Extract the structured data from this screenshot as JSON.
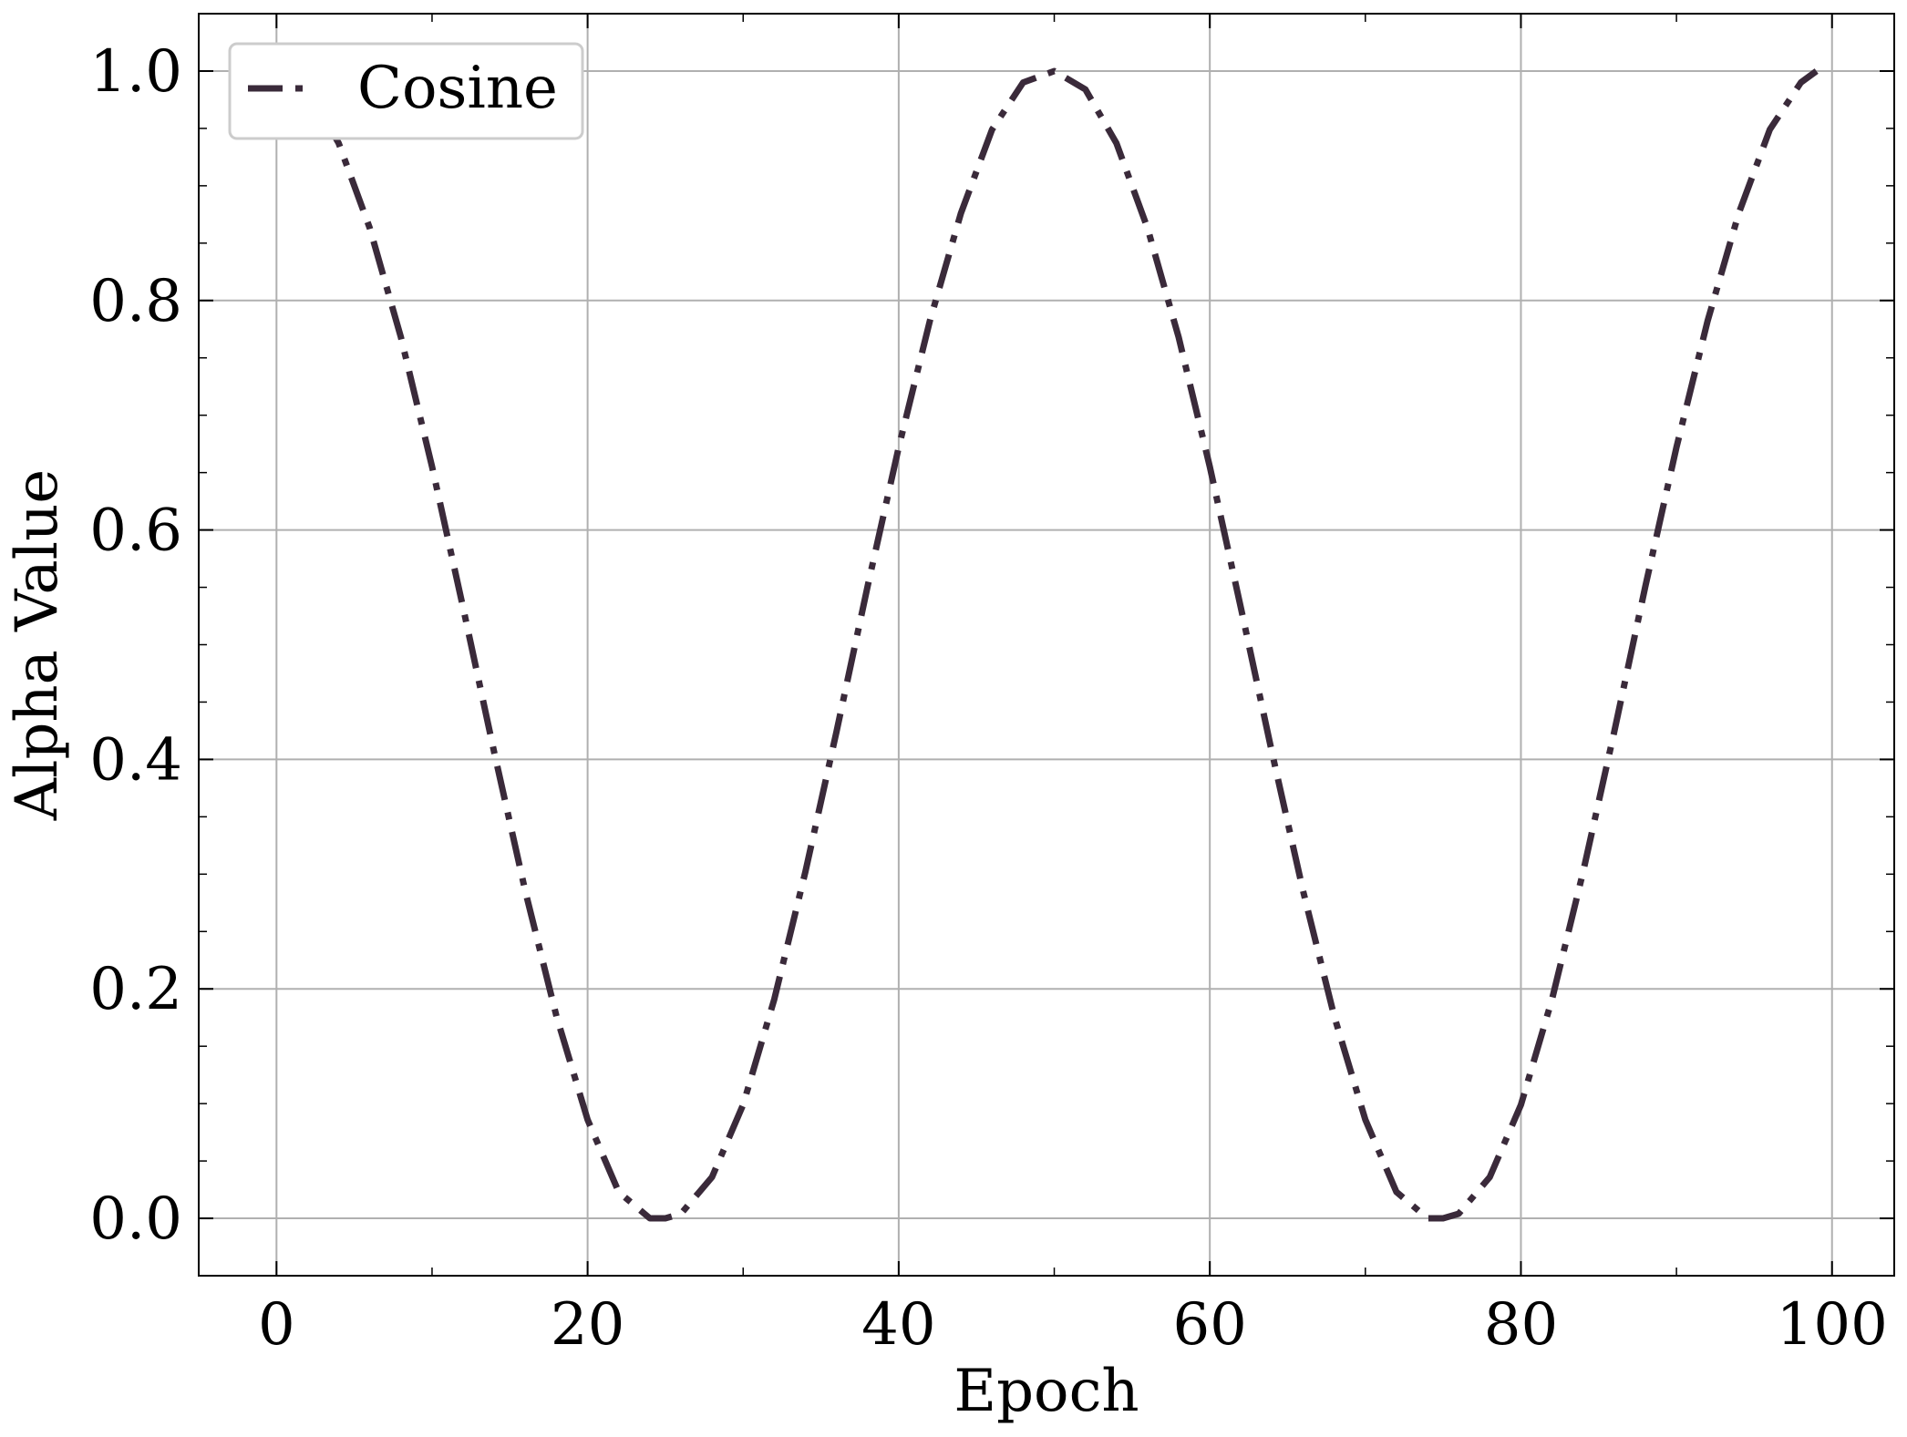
{
  "chart_data": {
    "type": "line",
    "xlabel": "Epoch",
    "ylabel": "Alpha Value",
    "xlim": [
      -5,
      104
    ],
    "ylim": [
      -0.05,
      1.05
    ],
    "x_ticks": [
      0,
      20,
      40,
      60,
      80,
      100
    ],
    "x_tick_labels": [
      "0",
      "20",
      "40",
      "60",
      "80",
      "100"
    ],
    "y_ticks": [
      0.0,
      0.2,
      0.4,
      0.6,
      0.8,
      1.0
    ],
    "y_tick_labels": [
      "0.0",
      "0.2",
      "0.4",
      "0.6",
      "0.8",
      "1.0"
    ],
    "grid": true,
    "legend_position": "upper-left",
    "series": [
      {
        "name": "Cosine",
        "color": "#3a2a3a",
        "line_style": "dash-dot",
        "x": [
          0,
          2,
          4,
          6,
          8,
          10,
          12,
          14,
          16,
          18,
          20,
          22,
          24,
          25,
          26,
          28,
          30,
          32,
          34,
          36,
          38,
          40,
          42,
          44,
          46,
          48,
          50,
          52,
          54,
          56,
          58,
          60,
          62,
          64,
          66,
          68,
          70,
          72,
          74,
          75,
          76,
          78,
          80,
          82,
          84,
          86,
          88,
          90,
          92,
          94,
          96,
          98,
          99
        ],
        "y": [
          1.0,
          0.984,
          0.937,
          0.863,
          0.768,
          0.655,
          0.532,
          0.406,
          0.285,
          0.176,
          0.086,
          0.023,
          0.0,
          0.0,
          0.004,
          0.036,
          0.099,
          0.191,
          0.302,
          0.424,
          0.551,
          0.672,
          0.782,
          0.876,
          0.949,
          0.99,
          1.0,
          0.984,
          0.937,
          0.863,
          0.768,
          0.655,
          0.532,
          0.406,
          0.285,
          0.176,
          0.086,
          0.023,
          0.0,
          0.0,
          0.004,
          0.036,
          0.099,
          0.191,
          0.302,
          0.424,
          0.551,
          0.672,
          0.782,
          0.876,
          0.949,
          0.99,
          1.0
        ]
      }
    ]
  }
}
